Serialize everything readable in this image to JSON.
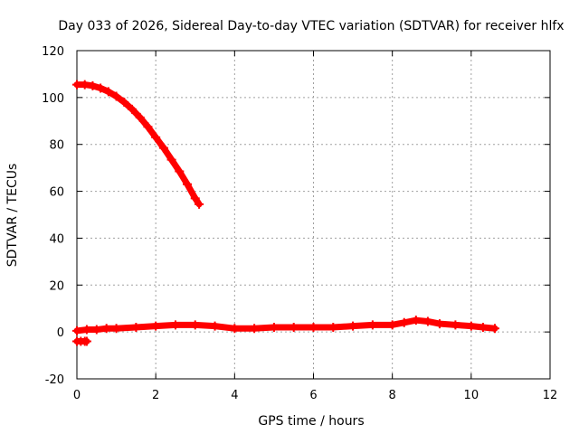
{
  "chart_data": {
    "type": "scatter",
    "title": "Day 033 of 2026, Sidereal Day-to-day VTEC variation (SDTVAR) for receiver hlfx",
    "xlabel": "GPS time / hours",
    "ylabel": "SDTVAR / TECUs",
    "xlim": [
      0,
      12
    ],
    "ylim": [
      -20,
      120
    ],
    "xticks": [
      0,
      2,
      4,
      6,
      8,
      10,
      12
    ],
    "yticks": [
      -20,
      0,
      20,
      40,
      60,
      80,
      100,
      120
    ],
    "grid": true,
    "marker": "plus",
    "color": "#ff0000",
    "series": [
      {
        "values": [
          [
            0.0,
            105.5
          ],
          [
            0.2,
            105.5
          ],
          [
            0.4,
            105.0
          ],
          [
            0.6,
            104.0
          ],
          [
            0.8,
            102.5
          ],
          [
            1.0,
            100.5
          ],
          [
            1.2,
            98.0
          ],
          [
            1.4,
            95.0
          ],
          [
            1.6,
            91.5
          ],
          [
            1.8,
            87.5
          ],
          [
            2.0,
            83.0
          ],
          [
            2.2,
            78.5
          ],
          [
            2.4,
            73.5
          ],
          [
            2.6,
            68.5
          ],
          [
            2.8,
            63.0
          ],
          [
            3.0,
            57.0
          ],
          [
            3.1,
            54.5
          ]
        ]
      },
      {
        "values": [
          [
            0.0,
            0.5
          ],
          [
            0.25,
            1.0
          ],
          [
            0.5,
            1.0
          ],
          [
            0.75,
            1.5
          ],
          [
            1.0,
            1.5
          ],
          [
            1.5,
            2.0
          ],
          [
            2.0,
            2.5
          ],
          [
            2.5,
            3.0
          ],
          [
            3.0,
            3.0
          ],
          [
            3.5,
            2.5
          ],
          [
            4.0,
            1.5
          ],
          [
            4.5,
            1.5
          ],
          [
            5.0,
            2.0
          ],
          [
            5.5,
            2.0
          ],
          [
            6.0,
            2.0
          ],
          [
            6.5,
            2.0
          ],
          [
            7.0,
            2.5
          ],
          [
            7.5,
            3.0
          ],
          [
            8.0,
            3.0
          ],
          [
            8.3,
            4.0
          ],
          [
            8.6,
            5.0
          ],
          [
            8.9,
            4.5
          ],
          [
            9.2,
            3.5
          ],
          [
            9.6,
            3.0
          ],
          [
            10.0,
            2.5
          ],
          [
            10.3,
            2.0
          ],
          [
            10.6,
            1.5
          ]
        ]
      },
      {
        "values": [
          [
            0.0,
            -4.0
          ],
          [
            0.1,
            -4.0
          ],
          [
            0.2,
            -4.0
          ],
          [
            0.25,
            -4.0
          ]
        ]
      }
    ]
  }
}
